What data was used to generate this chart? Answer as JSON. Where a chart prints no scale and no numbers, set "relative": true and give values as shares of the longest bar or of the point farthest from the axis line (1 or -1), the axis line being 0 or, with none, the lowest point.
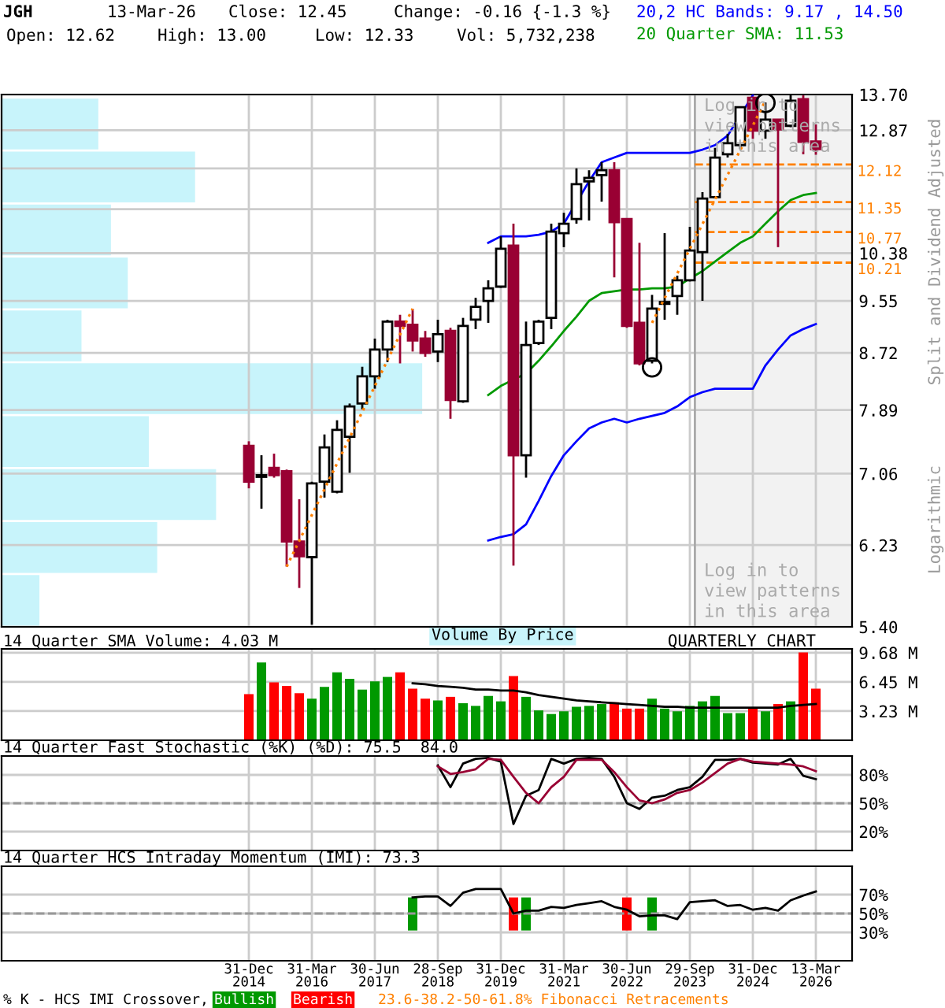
{
  "chart_data": [
    {
      "type": "bar",
      "annotations": [
        "Volume By Price"
      ],
      "orientation": "horizontal",
      "relative": true,
      "tick_labels": false,
      "color": "#c8f4fb",
      "categories": [
        null,
        null,
        null,
        null,
        null,
        null,
        null,
        null,
        null,
        null
      ],
      "values": [
        0.23,
        0.46,
        0.26,
        0.3,
        0.19,
        1,
        0.35,
        0.51,
        0.37,
        0.09
      ]
    },
    {
      "type": "candlestick",
      "categories": [
        null,
        null,
        null,
        null,
        null,
        null,
        null,
        null,
        null,
        null,
        null,
        null,
        null,
        null,
        null,
        null,
        null,
        null,
        null,
        null,
        null,
        null,
        null,
        null,
        null,
        null,
        null,
        null,
        null,
        null,
        null,
        null,
        null,
        null,
        null,
        null,
        null,
        null,
        null,
        null,
        null,
        null,
        null,
        null,
        null,
        null
      ],
      "ohlc": [
        [
          7.41,
          7.47,
          6.88,
          6.96
        ],
        [
          7.02,
          7.29,
          6.64,
          7.04
        ],
        [
          7.13,
          7.31,
          7.01,
          7.04
        ],
        [
          7.09,
          7.11,
          6.0,
          6.27
        ],
        [
          6.27,
          6.75,
          5.78,
          6.11
        ],
        [
          6.1,
          6.96,
          5.42,
          6.94
        ],
        [
          6.96,
          7.56,
          6.77,
          7.39
        ],
        [
          6.84,
          7.75,
          6.82,
          7.62
        ],
        [
          7.53,
          7.98,
          7.07,
          7.94
        ],
        [
          7.98,
          8.51,
          7.9,
          8.37
        ],
        [
          8.37,
          8.94,
          8.19,
          8.77
        ],
        [
          8.77,
          9.24,
          8.58,
          9.21
        ],
        [
          9.21,
          9.32,
          8.56,
          9.14
        ],
        [
          9.16,
          9.42,
          8.74,
          8.91
        ],
        [
          8.94,
          9.06,
          8.66,
          8.72
        ],
        [
          8.74,
          9.24,
          8.58,
          9.01
        ],
        [
          9.06,
          9.11,
          7.77,
          8.03
        ],
        [
          8.01,
          9.27,
          7.99,
          9.14
        ],
        [
          9.24,
          9.6,
          9.09,
          9.45
        ],
        [
          9.55,
          9.9,
          9.19,
          9.76
        ],
        [
          9.79,
          10.69,
          9.77,
          10.46
        ],
        [
          10.52,
          10.93,
          6.01,
          7.29
        ],
        [
          7.29,
          9.21,
          7.01,
          8.84
        ],
        [
          8.87,
          9.24,
          8.84,
          9.21
        ],
        [
          9.27,
          10.93,
          9.09,
          10.78
        ],
        [
          10.75,
          11.14,
          10.49,
          10.93
        ],
        [
          11.02,
          12.04,
          10.93,
          11.71
        ],
        [
          11.77,
          12.0,
          10.99,
          11.84
        ],
        [
          11.9,
          12.17,
          11.36,
          12.0
        ],
        [
          12.0,
          12.17,
          9.95,
          10.96
        ],
        [
          11.02,
          11.02,
          9.11,
          9.14
        ],
        [
          9.19,
          10.57,
          8.53,
          8.56
        ],
        [
          8.6,
          9.65,
          8.56,
          9.42
        ],
        [
          9.5,
          10.75,
          9.24,
          9.53
        ],
        [
          9.63,
          9.98,
          9.32,
          9.9
        ],
        [
          9.9,
          10.87,
          9.88,
          10.43
        ],
        [
          10.4,
          11.55,
          9.55,
          11.42
        ],
        [
          11.45,
          12.48,
          11.42,
          12.27
        ],
        [
          12.34,
          12.79,
          12.27,
          12.58
        ],
        [
          12.54,
          13.4,
          12.45,
          13.4
        ],
        [
          13.62,
          13.65,
          12.68,
          12.86
        ],
        [
          12.86,
          13.51,
          12.68,
          13.11
        ],
        [
          13.11,
          13.11,
          10.49,
          12.89
        ],
        [
          12.97,
          13.68,
          12.94,
          13.55
        ],
        [
          13.59,
          13.68,
          12.34,
          12.61
        ],
        [
          12.62,
          13.0,
          12.33,
          12.45
        ]
      ],
      "series": [
        {
          "type": "line",
          "name": "20,2 HC Bands: 9.17 , 14.50",
          "color": "#0000ff",
          "values": [
            null,
            null,
            null,
            null,
            null,
            null,
            null,
            null,
            null,
            null,
            null,
            null,
            null,
            null,
            null,
            null,
            null,
            null,
            null,
            10.57,
            10.69,
            10.69,
            10.69,
            10.72,
            10.78,
            10.93,
            null,
            11.77,
            12.17,
            12.27,
            12.37,
            12.37,
            12.37,
            12.37,
            12.37,
            12.37,
            12.44,
            12.54,
            12.75,
            null,
            13.68,
            null,
            null,
            null,
            null,
            null
          ]
        },
        {
          "type": "line",
          "color": "#0000ff",
          "values": [
            null,
            null,
            null,
            null,
            null,
            null,
            null,
            null,
            null,
            null,
            null,
            null,
            null,
            null,
            null,
            null,
            null,
            null,
            null,
            6.28,
            6.32,
            6.35,
            6.46,
            6.73,
            7.03,
            7.29,
            7.47,
            7.64,
            7.72,
            7.77,
            7.72,
            7.77,
            7.81,
            7.85,
            7.94,
            8.07,
            8.14,
            8.19,
            8.19,
            8.19,
            8.19,
            8.53,
            8.77,
            8.99,
            9.09,
            9.17
          ]
        },
        {
          "type": "line",
          "name": "20 Quarter SMA: 11.53",
          "color": "#009900",
          "values": [
            null,
            null,
            null,
            null,
            null,
            null,
            null,
            null,
            null,
            null,
            null,
            null,
            null,
            null,
            null,
            null,
            null,
            null,
            null,
            8.1,
            8.23,
            null,
            8.41,
            8.6,
            8.82,
            9.06,
            9.29,
            9.55,
            9.68,
            9.71,
            9.74,
            9.74,
            9.76,
            9.76,
            9.79,
            9.93,
            10.06,
            10.23,
            10.4,
            10.57,
            10.69,
            10.93,
            11.17,
            11.39,
            11.49,
            11.53
          ]
        },
        {
          "type": "line",
          "color": "#ff8000",
          "line_style": "dotted",
          "values": [
            null,
            null,
            null,
            6.0,
            null,
            null,
            null,
            null,
            null,
            null,
            null,
            null,
            null,
            9.42,
            null,
            null,
            null,
            null,
            null,
            null,
            null,
            null,
            null,
            null,
            null,
            null,
            null,
            null,
            null,
            null,
            null,
            null,
            null,
            null,
            null,
            null,
            null,
            null,
            null,
            null,
            null,
            null,
            null,
            null,
            null,
            null
          ]
        },
        {
          "type": "line",
          "color": "#ff8000",
          "line_style": "dotted",
          "values": [
            null,
            null,
            null,
            null,
            null,
            null,
            null,
            null,
            null,
            null,
            null,
            null,
            null,
            null,
            null,
            null,
            null,
            null,
            null,
            null,
            null,
            null,
            null,
            null,
            null,
            null,
            null,
            null,
            null,
            null,
            null,
            null,
            9.19,
            null,
            null,
            null,
            null,
            null,
            null,
            null,
            null,
            13.55,
            null,
            null,
            null,
            null
          ]
        },
        {
          "type": "scatter",
          "color": "#000000",
          "marker": "circle",
          "values": [
            null,
            null,
            null,
            null,
            null,
            null,
            null,
            null,
            null,
            null,
            null,
            null,
            null,
            null,
            null,
            null,
            null,
            null,
            null,
            null,
            null,
            null,
            null,
            null,
            null,
            null,
            null,
            null,
            null,
            null,
            null,
            null,
            8.5,
            null,
            null,
            null,
            null,
            null,
            null,
            null,
            null,
            13.5,
            null,
            null,
            null,
            null
          ]
        }
      ],
      "log": true,
      "ylim": [
        5.4,
        13.7
      ],
      "yticks": [
        {
          "value": 5.4,
          "label": "5.40"
        },
        {
          "value": 6.23,
          "label": "6.23"
        },
        {
          "value": 7.06,
          "label": "7.06"
        },
        {
          "value": 7.89,
          "label": "7.89"
        },
        {
          "value": 8.72,
          "label": "8.72"
        },
        {
          "value": 9.55,
          "label": "9.55"
        },
        {
          "value": 10.38,
          "label": "10.38"
        },
        {
          "value": 11.21,
          "label": null
        },
        {
          "value": 12.04,
          "label": null
        },
        {
          "value": 12.87,
          "label": "12.87"
        },
        {
          "value": 13.7,
          "label": "13.70"
        }
      ],
      "grid": true,
      "tick_labels": "y",
      "legend": "top right",
      "ref_lines": [
        {
          "axis": "y",
          "value": 12.12,
          "label": "12.12",
          "color": "#ff8000",
          "line_style": "dashed"
        },
        {
          "axis": "y",
          "value": 11.35,
          "label": "11.35",
          "color": "#ff8000",
          "line_style": "dashed"
        },
        {
          "axis": "y",
          "value": 10.77,
          "label": "10.77",
          "color": "#ff8000",
          "line_style": "dashed"
        },
        {
          "axis": "y",
          "value": 10.21,
          "label": "10.21",
          "color": "#ff8000",
          "line_style": "dashed"
        }
      ],
      "annotations": [
        "JGH",
        "13-Mar-26",
        "Close: 12.45",
        "Change: -0.16 {-1.3 %}",
        "Open: 12.62",
        "High: 13.00",
        "Low: 12.33",
        "Vol: 5,732,238",
        "Split and Dividend Adjusted",
        "Logarithmic",
        "Log in to\nview patterns\nin this area",
        "Log in to\nview patterns\nin this area",
        "23.6-38.2-50-61.8% Fibonacci Retracements"
      ]
    },
    {
      "type": "bar",
      "categories": [
        null,
        null,
        null,
        null,
        null,
        null,
        null,
        null,
        null,
        null,
        null,
        null,
        null,
        null,
        null,
        null,
        null,
        null,
        null,
        null,
        null,
        null,
        null,
        null,
        null,
        null,
        null,
        null,
        null,
        null,
        null,
        null,
        null,
        null,
        null,
        null,
        null,
        null,
        null,
        null,
        null,
        null,
        null,
        null,
        null,
        null
      ],
      "series": [
        {
          "type": "bar",
          "colors": [
            "#ff0000",
            "#009900",
            "#ff0000",
            "#ff0000",
            "#ff0000",
            "#009900",
            "#009900",
            "#009900",
            "#009900",
            "#009900",
            "#009900",
            "#009900",
            "#ff0000",
            "#ff0000",
            "#ff0000",
            "#009900",
            "#ff0000",
            "#009900",
            "#009900",
            "#009900",
            "#009900",
            "#ff0000",
            "#009900",
            "#009900",
            "#009900",
            "#009900",
            "#009900",
            "#009900",
            "#009900",
            "#ff0000",
            "#ff0000",
            "#ff0000",
            "#009900",
            "#009900",
            "#009900",
            "#009900",
            "#009900",
            "#009900",
            "#009900",
            "#009900",
            "#ff0000",
            "#009900",
            "#ff0000",
            "#009900",
            "#ff0000",
            "#ff0000"
          ],
          "values": [
            5.1,
            8.6,
            6.4,
            6.0,
            5.2,
            4.6,
            5.9,
            7.5,
            6.8,
            5.6,
            6.5,
            7.0,
            7.5,
            5.7,
            4.6,
            4.4,
            4.8,
            4.1,
            3.8,
            4.9,
            4.3,
            7.1,
            4.8,
            3.3,
            2.9,
            3.2,
            3.7,
            3.8,
            4.0,
            4.2,
            3.5,
            3.5,
            4.6,
            3.5,
            3.2,
            3.8,
            4.3,
            4.9,
            3.0,
            3.0,
            3.5,
            3.2,
            4.0,
            4.3,
            9.7,
            5.7
          ]
        },
        {
          "type": "line",
          "color": "#000000",
          "values": [
            null,
            null,
            null,
            null,
            null,
            null,
            null,
            null,
            null,
            null,
            null,
            null,
            null,
            6.3,
            6.2,
            6.0,
            5.9,
            5.8,
            5.6,
            5.6,
            5.5,
            5.5,
            5.3,
            5.0,
            4.8,
            4.6,
            4.4,
            4.3,
            4.2,
            4.1,
            4.0,
            3.9,
            3.8,
            3.7,
            3.7,
            3.6,
            3.6,
            3.6,
            3.6,
            3.6,
            3.6,
            3.6,
            3.6,
            3.8,
            3.9,
            4.0
          ]
        }
      ],
      "ylim": [
        0,
        10.1
      ],
      "yticks": [
        {
          "value": 3.23,
          "label": "3.23 M"
        },
        {
          "value": 6.45,
          "label": "6.45 M"
        },
        {
          "value": 9.68,
          "label": "9.68 M"
        }
      ],
      "grid": true,
      "tick_labels": "y",
      "annotations": [
        "14 Quarter SMA Volume: 4.03 M",
        "QUARTERLY CHART"
      ]
    },
    {
      "type": "line",
      "title": "14 Quarter Fast Stochastic (%K) (%D): 75.5  84.0",
      "categories": [
        null,
        null,
        null,
        null,
        null,
        null,
        null,
        null,
        null,
        null,
        null,
        null,
        null,
        null,
        null,
        null,
        null,
        null,
        null,
        null,
        null,
        null,
        null,
        null,
        null,
        null,
        null,
        null,
        null,
        null,
        null,
        null,
        null,
        null,
        null,
        null,
        null,
        null,
        null,
        null,
        null,
        null,
        null,
        null,
        null,
        null
      ],
      "series": [
        {
          "color": "#000000",
          "values": [
            null,
            null,
            null,
            null,
            null,
            null,
            null,
            null,
            null,
            null,
            null,
            null,
            null,
            null,
            null,
            90,
            67,
            92,
            97,
            98,
            94,
            28,
            58,
            64,
            97,
            92,
            97,
            98,
            97,
            78,
            50,
            44,
            56,
            58,
            64,
            67,
            78,
            96,
            96,
            97,
            93,
            92,
            91,
            97,
            79,
            75.5
          ]
        },
        {
          "color": "#990033",
          "values": [
            null,
            null,
            null,
            null,
            null,
            null,
            null,
            null,
            null,
            null,
            null,
            null,
            null,
            null,
            null,
            89,
            81,
            83,
            86,
            97,
            96,
            78,
            61,
            50,
            67,
            78,
            96,
            96,
            96,
            83,
            67,
            53,
            50,
            54,
            61,
            64,
            72,
            82,
            92,
            97,
            94,
            93,
            92,
            91,
            89,
            84
          ]
        }
      ],
      "ylim": [
        0,
        100
      ],
      "yticks": [
        {
          "value": 20,
          "label": "20%"
        },
        {
          "value": 50,
          "label": "50%"
        },
        {
          "value": 80,
          "label": "80%"
        }
      ],
      "grid": true,
      "tick_labels": "y",
      "ref_lines": [
        {
          "axis": "y",
          "value": 50,
          "color": "#999999",
          "line_style": "dashed"
        }
      ]
    },
    {
      "type": "line",
      "title": "14 Quarter HCS Intraday Momentum (IMI): 73.3",
      "categories": [
        "31-Dec\n2014",
        null,
        null,
        null,
        null,
        "31-Mar\n2016",
        null,
        null,
        null,
        null,
        "30-Jun\n2017",
        null,
        null,
        null,
        null,
        "28-Sep\n2018",
        null,
        null,
        null,
        null,
        "31-Dec\n2019",
        null,
        null,
        null,
        null,
        "31-Mar\n2021",
        null,
        null,
        null,
        null,
        "30-Jun\n2022",
        null,
        null,
        null,
        null,
        "29-Sep\n2023",
        null,
        null,
        null,
        null,
        "31-Dec\n2024",
        null,
        null,
        null,
        null,
        "13-Mar\n2026"
      ],
      "series": [
        {
          "type": "line",
          "color": "#000000",
          "values": [
            null,
            null,
            null,
            null,
            null,
            null,
            null,
            null,
            null,
            null,
            null,
            null,
            null,
            67,
            68,
            68,
            58,
            72,
            76,
            76,
            76,
            50,
            53,
            53,
            57,
            56,
            59,
            61,
            63,
            57,
            54,
            47,
            48,
            48,
            44,
            62,
            63,
            64,
            58,
            59,
            54,
            56,
            53,
            64,
            69,
            73.3
          ]
        },
        {
          "type": "bar",
          "name": "Bullish",
          "color": "#009900",
          "values": [
            null,
            null,
            null,
            null,
            null,
            null,
            null,
            null,
            null,
            null,
            null,
            null,
            null,
            35,
            null,
            null,
            null,
            null,
            null,
            null,
            null,
            null,
            35,
            null,
            null,
            null,
            null,
            null,
            null,
            null,
            null,
            null,
            35,
            null,
            null,
            null,
            null,
            null,
            null,
            null,
            null,
            null,
            null,
            null,
            null,
            null
          ],
          "base": [
            null,
            null,
            null,
            null,
            null,
            null,
            null,
            null,
            null,
            null,
            null,
            null,
            null,
            32,
            null,
            null,
            null,
            null,
            null,
            null,
            null,
            null,
            32,
            null,
            null,
            null,
            null,
            null,
            null,
            null,
            null,
            null,
            32,
            null,
            null,
            null,
            null,
            null,
            null,
            null,
            null,
            null,
            null,
            null,
            null,
            null
          ]
        },
        {
          "type": "bar",
          "name": "Bearish",
          "color": "#ff0000",
          "values": [
            null,
            null,
            null,
            null,
            null,
            null,
            null,
            null,
            null,
            null,
            null,
            null,
            null,
            null,
            null,
            null,
            null,
            null,
            null,
            null,
            null,
            35,
            null,
            null,
            null,
            null,
            null,
            null,
            null,
            null,
            35,
            null,
            null,
            null,
            null,
            null,
            null,
            null,
            null,
            null,
            null,
            null,
            null,
            null,
            null,
            null
          ],
          "base": [
            null,
            null,
            null,
            null,
            null,
            null,
            null,
            null,
            null,
            null,
            null,
            null,
            null,
            null,
            null,
            null,
            null,
            null,
            null,
            null,
            null,
            32,
            null,
            null,
            null,
            null,
            null,
            null,
            null,
            null,
            32,
            null,
            null,
            null,
            null,
            null,
            null,
            null,
            null,
            null,
            null,
            null,
            null,
            null,
            null,
            null
          ]
        }
      ],
      "ylim": [
        0,
        100
      ],
      "yticks": [
        {
          "value": 30,
          "label": "30%"
        },
        {
          "value": 50,
          "label": "50%"
        },
        {
          "value": 70,
          "label": "70%"
        }
      ],
      "grid": true,
      "legend": "bottom",
      "legend_title": "% K - HCS IMI Crossover,",
      "ref_lines": [
        {
          "axis": "y",
          "value": 50,
          "color": "#999999",
          "line_style": "dashed"
        }
      ]
    }
  ]
}
